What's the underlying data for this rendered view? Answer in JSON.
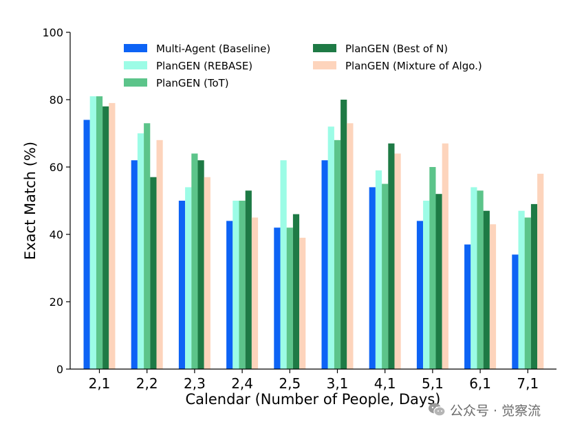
{
  "chart_data": {
    "type": "bar",
    "title": "",
    "xlabel": "Calendar (Number of People, Days)",
    "ylabel": "Exact Match (%)",
    "ylim": [
      0,
      100
    ],
    "yticks": [
      0,
      20,
      40,
      60,
      80,
      100
    ],
    "grid": false,
    "legend_position": "top",
    "categories": [
      "2,1",
      "2,2",
      "2,3",
      "2,4",
      "2,5",
      "3,1",
      "4,1",
      "5,1",
      "6,1",
      "7,1"
    ],
    "series": [
      {
        "name": "Multi-Agent (Baseline)",
        "color": "#0d63f5",
        "values": [
          74,
          62,
          50,
          44,
          42,
          62,
          54,
          44,
          37,
          34
        ]
      },
      {
        "name": "PlanGEN (REBASE)",
        "color": "#9cfce6",
        "values": [
          81,
          70,
          54,
          50,
          62,
          72,
          59,
          50,
          54,
          47
        ]
      },
      {
        "name": "PlanGEN (ToT)",
        "color": "#5cc48a",
        "values": [
          81,
          73,
          64,
          50,
          42,
          68,
          55,
          60,
          53,
          45
        ]
      },
      {
        "name": "PlanGEN (Best of N)",
        "color": "#1e7a45",
        "values": [
          78,
          57,
          62,
          53,
          46,
          80,
          67,
          52,
          47,
          49
        ]
      },
      {
        "name": "PlanGEN (Mixture of Algo.)",
        "color": "#fdd4bc",
        "values": [
          79,
          68,
          57,
          45,
          39,
          73,
          64,
          67,
          43,
          58
        ]
      }
    ]
  },
  "watermark": {
    "text": "公众号 · 觉察流",
    "icon": "wechat-icon"
  }
}
